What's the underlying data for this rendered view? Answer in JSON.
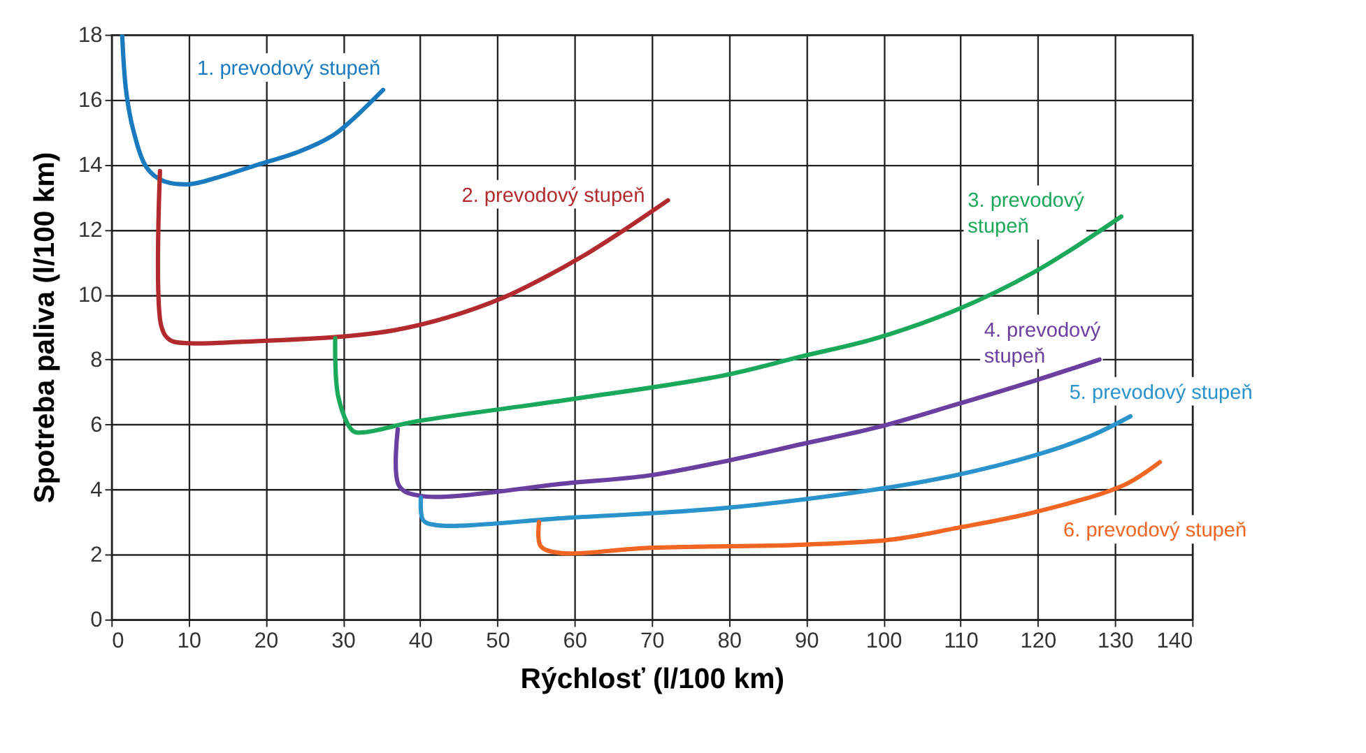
{
  "chart_data": {
    "type": "line",
    "xlabel": "Rýchlosť (l/100 km)",
    "ylabel": "Spotreba paliva (l/100 km)",
    "xlim": [
      0,
      140
    ],
    "xticks": [
      0,
      10,
      20,
      30,
      40,
      50,
      60,
      70,
      80,
      90,
      100,
      110,
      120,
      130,
      140
    ],
    "ylim": [
      0,
      18
    ],
    "yticks": [
      0,
      2,
      4,
      6,
      8,
      10,
      12,
      14,
      16,
      18
    ],
    "grid": true,
    "marker": "none",
    "line_style": "solid",
    "series": [
      {
        "name": "1. prevodový stupeň",
        "color": "#1a7abf",
        "x": [
          1.4,
          1.9,
          2.8,
          4.6,
          6.7,
          10.2,
          13.7,
          19,
          24.3,
          28.7,
          31.3,
          35.2
        ],
        "values": [
          18,
          16.3,
          15.1,
          13.9,
          13.5,
          13.4,
          13.6,
          14.0,
          14.4,
          14.9,
          15.4,
          16.3
        ]
      },
      {
        "name": "2. prevodový stupeň",
        "color": "#b22a2e",
        "x": [
          6.3,
          6.5,
          7.6,
          10.2,
          17.2,
          29.5,
          36.6,
          43.6,
          50.7,
          55.9,
          61.2,
          66.5,
          72.1
        ],
        "values": [
          13.8,
          9.0,
          8.6,
          8.5,
          8.55,
          8.7,
          8.9,
          9.3,
          9.9,
          10.5,
          11.2,
          12.0,
          12.9
        ]
      },
      {
        "name": "3. prevodový stupeň",
        "color": "#1aa85a",
        "x": [
          29,
          29.4,
          31.3,
          32.7,
          39.6,
          59.4,
          79.1,
          89.5,
          99,
          109.2,
          119.6,
          130.8
        ],
        "values": [
          8.65,
          6.85,
          5.8,
          5.76,
          6.1,
          6.77,
          7.5,
          8.1,
          8.65,
          9.5,
          10.7,
          12.4
        ]
      },
      {
        "name": "4. prevodový stupeň",
        "color": "#6b3fa0",
        "x": [
          37.1,
          37.3,
          40.1,
          59.4,
          69.6,
          79.1,
          89.5,
          99,
          109.2,
          119.6,
          128
        ],
        "values": [
          5.85,
          4.1,
          3.8,
          4.2,
          4.43,
          4.85,
          5.4,
          5.9,
          6.6,
          7.35,
          8.0
        ]
      },
      {
        "name": "5. prevodový stupeň",
        "color": "#2a93cc",
        "x": [
          40.1,
          40.4,
          42.2,
          59.4,
          79.1,
          99,
          109.2,
          119.6,
          126.8,
          132
        ],
        "values": [
          3.75,
          3.05,
          2.9,
          3.13,
          3.42,
          4.0,
          4.43,
          5.05,
          5.64,
          6.25
        ]
      },
      {
        "name": "6. prevodový stupeň",
        "color": "#f26522",
        "x": [
          55.4,
          55.6,
          58,
          69.6,
          89.5,
          101.1,
          109.2,
          119.6,
          131.2,
          135.8
        ],
        "values": [
          3.0,
          2.26,
          2.05,
          2.2,
          2.3,
          2.46,
          2.8,
          3.3,
          4.14,
          4.84
        ]
      }
    ]
  }
}
